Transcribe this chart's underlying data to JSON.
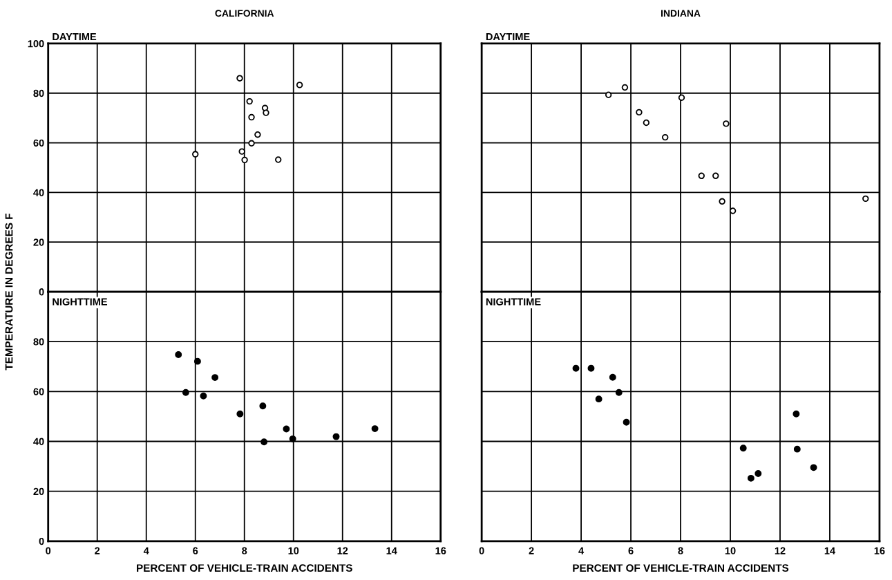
{
  "chart_data": [
    {
      "type": "scatter",
      "title": "CALIFORNIA",
      "annotations": [
        "DAYTIME"
      ],
      "xlim": [
        0,
        16
      ],
      "xticks": [
        0,
        2,
        4,
        6,
        8,
        10,
        12,
        14,
        16
      ],
      "ylim": [
        0,
        100
      ],
      "yticks": [
        0,
        20,
        40,
        60,
        80,
        100
      ],
      "grid": true,
      "marker": "circle",
      "legend": false,
      "tick_labels": "y",
      "series": [
        {
          "color": "#000000",
          "x": [
            7.81,
            10.25,
            8.21,
            8.84,
            8.88,
            8.29,
            8.54,
            8.29,
            7.9,
            8.01,
            9.38,
            6.0
          ],
          "values": [
            86.0,
            83.3,
            76.7,
            74.0,
            72.1,
            70.3,
            63.3,
            59.8,
            56.5,
            53.1,
            53.2,
            55.4
          ]
        }
      ]
    },
    {
      "type": "scatter",
      "title": "INDIANA",
      "annotations": [
        "DAYTIME"
      ],
      "xlim": [
        0,
        16
      ],
      "xticks": [
        0,
        2,
        4,
        6,
        8,
        10,
        12,
        14,
        16
      ],
      "ylim": [
        0,
        100
      ],
      "yticks": [
        0,
        20,
        40,
        60,
        80,
        100
      ],
      "grid": true,
      "marker": "circle",
      "legend": false,
      "tick_labels": false,
      "series": [
        {
          "color": "#000000",
          "x": [
            5.1,
            5.76,
            8.04,
            6.33,
            6.62,
            7.38,
            9.83,
            8.84,
            9.41,
            9.67,
            10.1,
            15.44
          ],
          "values": [
            79.3,
            82.3,
            78.2,
            72.3,
            68.1,
            62.2,
            67.7,
            46.7,
            46.7,
            36.4,
            32.6,
            37.5
          ]
        }
      ]
    },
    {
      "type": "scatter",
      "annotations": [
        "NIGHTTIME"
      ],
      "xlabel": "PERCENT OF VEHICLE-TRAIN ACCIDENTS",
      "ylabel": "TEMPERATURE IN DEGREES F",
      "xlim": [
        0,
        16
      ],
      "xticks": [
        0,
        2,
        4,
        6,
        8,
        10,
        12,
        14,
        16
      ],
      "ylim": [
        0,
        100
      ],
      "yticks": [
        0,
        20,
        40,
        60,
        80,
        {
          "value": 100,
          "label": null
        }
      ],
      "grid": true,
      "marker": "circle",
      "legend": false,
      "series": [
        {
          "color": "#000000",
          "x": [
            5.31,
            6.09,
            6.8,
            5.61,
            6.33,
            7.82,
            8.75,
            8.8,
            9.71,
            9.97,
            11.74,
            13.32
          ],
          "values": [
            74.8,
            72.1,
            65.6,
            59.6,
            58.2,
            51.0,
            54.2,
            39.8,
            45.0,
            41.0,
            41.9,
            45.1
          ]
        }
      ]
    },
    {
      "type": "scatter",
      "annotations": [
        "NIGHTTIME"
      ],
      "xlabel": "PERCENT OF VEHICLE-TRAIN ACCIDENTS",
      "xlim": [
        0,
        16
      ],
      "xticks": [
        0,
        2,
        4,
        6,
        8,
        10,
        12,
        14,
        16
      ],
      "ylim": [
        0,
        100
      ],
      "yticks": [
        0,
        20,
        40,
        60,
        80,
        {
          "value": 100,
          "label": null
        }
      ],
      "grid": true,
      "marker": "circle",
      "legend": false,
      "tick_labels": "x",
      "series": [
        {
          "color": "#000000",
          "x": [
            3.79,
            4.4,
            5.27,
            5.52,
            4.71,
            5.82,
            12.65,
            10.52,
            12.69,
            13.35,
            11.12,
            10.83
          ],
          "values": [
            69.3,
            69.3,
            65.7,
            59.6,
            57.0,
            47.7,
            51.0,
            37.3,
            36.9,
            29.5,
            27.1,
            25.2
          ]
        }
      ]
    }
  ]
}
